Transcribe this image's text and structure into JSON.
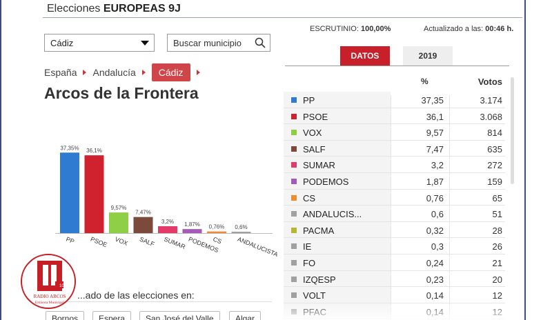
{
  "header": {
    "title_prefix": "Elecciones ",
    "title_bold": "EUROPEAS 9J"
  },
  "province_select": {
    "value": "Cádiz"
  },
  "search": {
    "placeholder": "Buscar municipio"
  },
  "breadcrumb": [
    "España",
    "Andalucía",
    "Cádiz"
  ],
  "page_title": "Arcos de la Frontera",
  "scrutiny": {
    "label": "ESCRUTINIO:",
    "value": "100,00%"
  },
  "updated": {
    "label": "Actualizado a las:",
    "value": "00:46 h."
  },
  "tabs": [
    "DATOS",
    "2019"
  ],
  "table": {
    "col_pct": "%",
    "col_votes": "Votos",
    "rows": [
      {
        "party": "PP",
        "pct": "37,35",
        "votes": "3.174",
        "color": "#2e7bd1"
      },
      {
        "party": "PSOE",
        "pct": "36,1",
        "votes": "3.068",
        "color": "#d0212e"
      },
      {
        "party": "VOX",
        "pct": "9,57",
        "votes": "814",
        "color": "#8fcf47"
      },
      {
        "party": "SALF",
        "pct": "7,47",
        "votes": "635",
        "color": "#7b4a3a"
      },
      {
        "party": "SUMAR",
        "pct": "3,2",
        "votes": "272",
        "color": "#e43a6a"
      },
      {
        "party": "PODEMOS",
        "pct": "1,87",
        "votes": "159",
        "color": "#a35bb5"
      },
      {
        "party": "CS",
        "pct": "0,76",
        "votes": "65",
        "color": "#f08a33"
      },
      {
        "party": "ANDALUCIS...",
        "pct": "0,6",
        "votes": "51",
        "color": "#a0a0a0"
      },
      {
        "party": "PACMA",
        "pct": "0,32",
        "votes": "28",
        "color": "#b6b634"
      },
      {
        "party": "IE",
        "pct": "0,3",
        "votes": "26",
        "color": "#a0a0a0"
      },
      {
        "party": "FO",
        "pct": "0,24",
        "votes": "21",
        "color": "#a0a0a0"
      },
      {
        "party": "IZQESP",
        "pct": "0,23",
        "votes": "20",
        "color": "#a0a0a0"
      },
      {
        "party": "VOLT",
        "pct": "0,14",
        "votes": "12",
        "color": "#a0a0a0"
      },
      {
        "party": "PFAC",
        "pct": "0,14",
        "votes": "12",
        "color": "#a0a0a0"
      }
    ]
  },
  "chart_data": {
    "type": "bar",
    "categories": [
      "PP",
      "PSOE",
      "VOX",
      "SALF",
      "SUMAR",
      "PODEMOS",
      "CS",
      "ANDALUCISTA"
    ],
    "values": [
      37.35,
      36.1,
      9.57,
      7.47,
      3.2,
      1.87,
      0.76,
      0.6
    ],
    "value_labels": [
      "37,35%",
      "36,1%",
      "9,57%",
      "7,47%",
      "3,2%",
      "1,87%",
      "0,76%",
      "0,6%"
    ],
    "colors": [
      "#2e7bd1",
      "#d0212e",
      "#8fcf47",
      "#7b4a3a",
      "#e43a6a",
      "#a35bb5",
      "#f08a33",
      "#a0a0a0"
    ],
    "ylim": [
      0,
      40
    ]
  },
  "results_in": {
    "label": "...ado de las elecciones en:",
    "towns": [
      "Bornos",
      "Espera",
      "San José del Valle",
      "Algar"
    ]
  },
  "logo": {
    "line1": "RADIO ARCOS",
    "line2": "Emisora Municipal",
    "badge": "107.8"
  }
}
